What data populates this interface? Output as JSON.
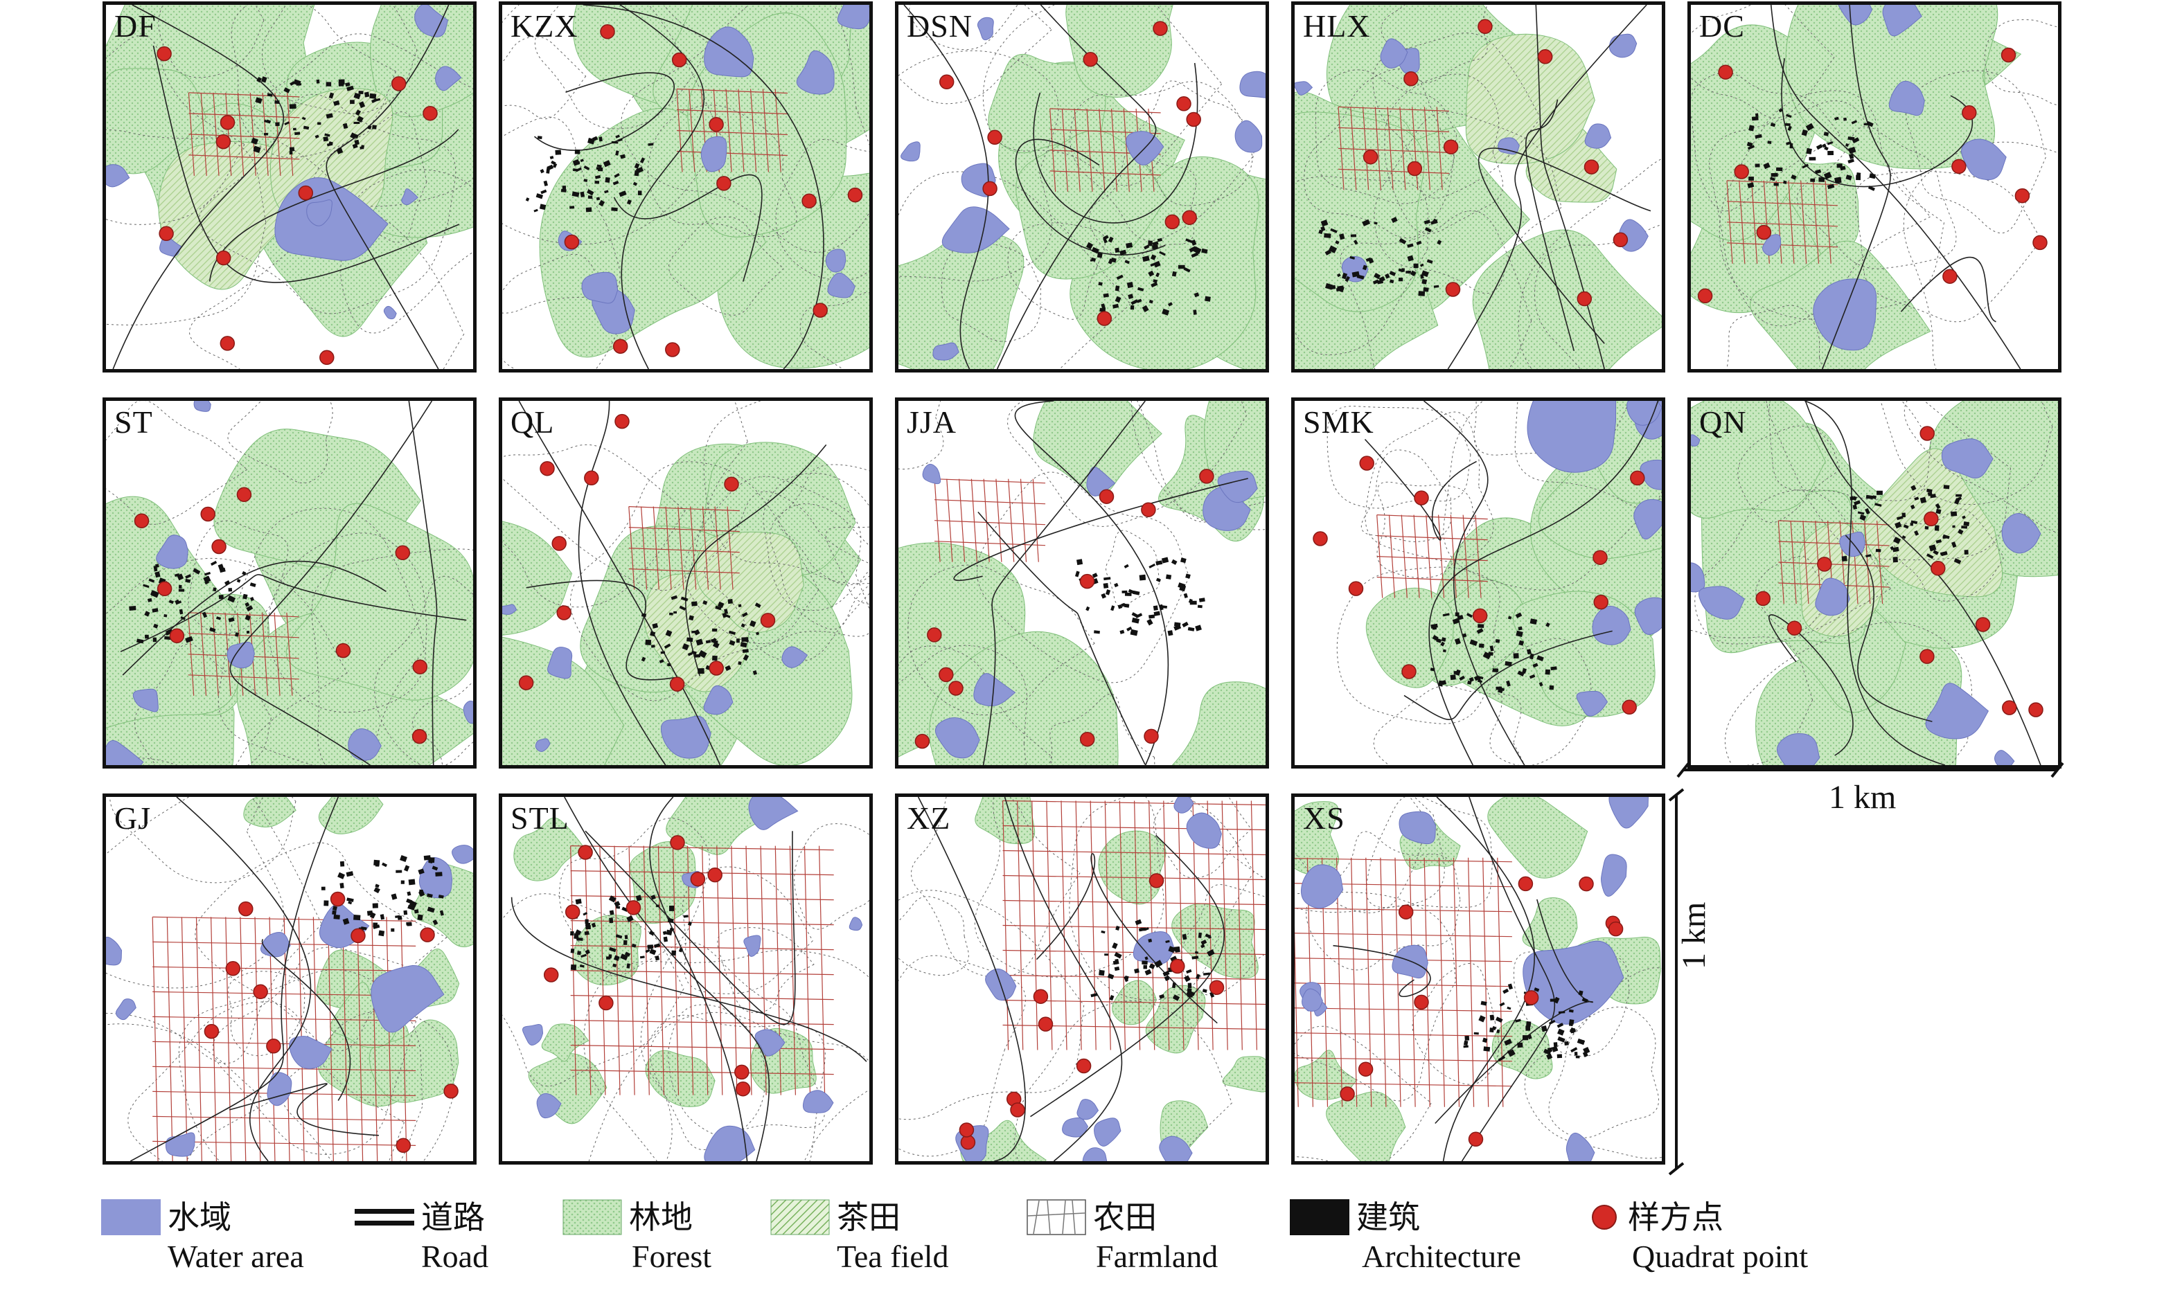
{
  "panels": [
    {
      "id": "DF",
      "label": "DF",
      "seed": 11
    },
    {
      "id": "KZX",
      "label": "KZX",
      "seed": 23
    },
    {
      "id": "DSN",
      "label": "DSN",
      "seed": 37
    },
    {
      "id": "HLX",
      "label": "HLX",
      "seed": 41
    },
    {
      "id": "DC",
      "label": "DC",
      "seed": 53
    },
    {
      "id": "ST",
      "label": "ST",
      "seed": 61
    },
    {
      "id": "QL",
      "label": "QL",
      "seed": 73
    },
    {
      "id": "JJA",
      "label": "JJA",
      "seed": 89
    },
    {
      "id": "SMK",
      "label": "SMK",
      "seed": 97
    },
    {
      "id": "QN",
      "label": "QN",
      "seed": 103
    },
    {
      "id": "GJ",
      "label": "GJ",
      "seed": 113
    },
    {
      "id": "STL",
      "label": "STL",
      "seed": 127
    },
    {
      "id": "XZ",
      "label": "XZ",
      "seed": 131
    },
    {
      "id": "XS",
      "label": "XS",
      "seed": 149
    }
  ],
  "scale": {
    "horizontal": "1 km",
    "vertical": "1 km"
  },
  "legend": [
    {
      "key": "water",
      "cn": "水域",
      "en": "Water area"
    },
    {
      "key": "road",
      "cn": "道路",
      "en": "Road"
    },
    {
      "key": "forest",
      "cn": "林地",
      "en": "Forest"
    },
    {
      "key": "tea",
      "cn": "茶田",
      "en": "Tea field"
    },
    {
      "key": "farmland",
      "cn": "农田",
      "en": "Farmland"
    },
    {
      "key": "architecture",
      "cn": "建筑",
      "en": "Architecture"
    },
    {
      "key": "quadrat",
      "cn": "样方点",
      "en": "Quadrat point"
    }
  ],
  "colors": {
    "water": "#8d97d6",
    "forest": "#c8e8bf",
    "forest_dot": "#8fc98a",
    "tea": "#a9cf8c",
    "farmland_line": "#b3403a",
    "architecture": "#111111",
    "quadrat": "#d42a25",
    "road": "#222222",
    "contour": "#666666"
  }
}
